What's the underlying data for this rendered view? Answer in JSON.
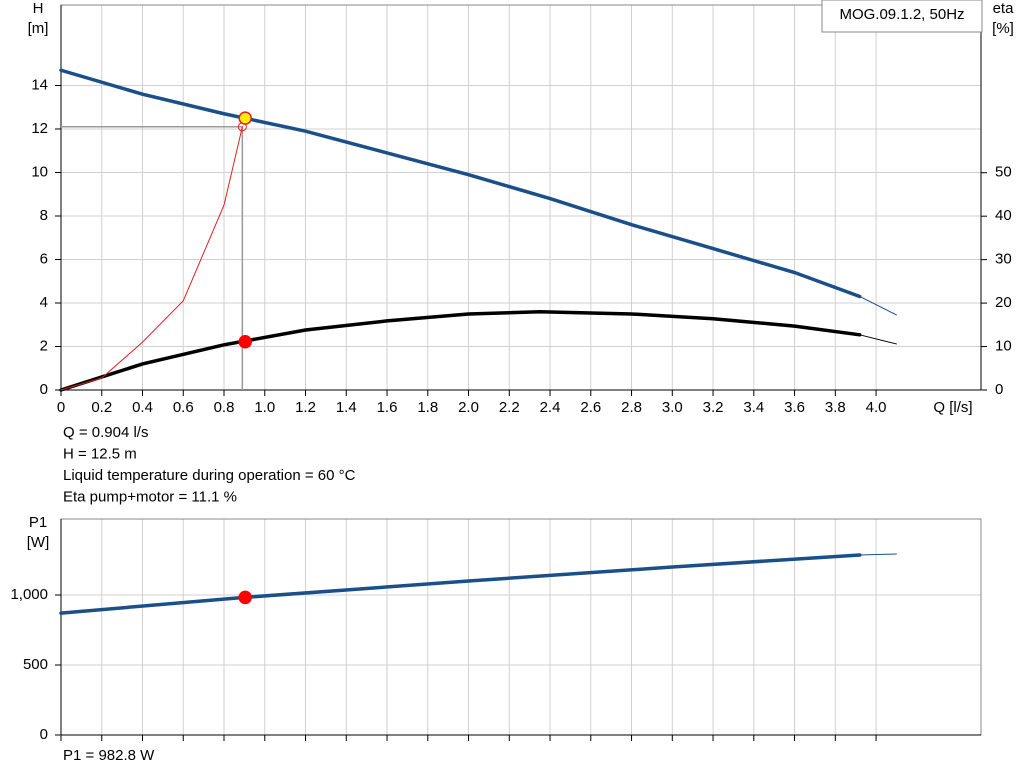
{
  "chart_data": [
    {
      "type": "line",
      "title": "MOG.09.1.2, 50Hz",
      "ylabel": "H",
      "ylabel_unit": "[m]",
      "y2label": "eta",
      "y2label_unit": "[%]",
      "xlabel": "Q [l/s]",
      "xlim": [
        0,
        4.515
      ],
      "ylim": [
        0,
        17.7
      ],
      "y2lim": [
        0,
        88.6
      ],
      "xticks": [
        0,
        0.2,
        0.4,
        0.6,
        0.8,
        {
          "value": 1,
          "label": "1.0"
        },
        1.2,
        1.4,
        1.6,
        1.8,
        {
          "value": 2,
          "label": "2.0"
        },
        2.2,
        2.4,
        2.6,
        2.8,
        {
          "value": 3,
          "label": "3.0"
        },
        3.2,
        3.4,
        3.6,
        3.8,
        {
          "value": 4,
          "label": "4.0"
        }
      ],
      "yticks": [
        0,
        2,
        4,
        6,
        8,
        10,
        12,
        14
      ],
      "y2ticks": [
        0,
        10,
        20,
        30,
        40,
        50
      ],
      "grid": true,
      "series": [
        {
          "color": "#1b4f8a",
          "width": 3.5,
          "x": [
            0,
            0.4,
            0.8,
            1.2,
            1.6,
            2.0,
            2.4,
            2.8,
            3.2,
            3.6,
            3.92
          ],
          "values": [
            14.7,
            13.6,
            12.7,
            11.9,
            10.9,
            9.9,
            8.8,
            7.6,
            6.5,
            5.4,
            4.3
          ]
        },
        {
          "color": "#1b4f8a",
          "width": 1,
          "x": [
            3.92,
            4.1
          ],
          "values": [
            4.3,
            3.45
          ]
        },
        {
          "color": "#000000",
          "width": 3.5,
          "axis": "y2",
          "x": [
            0,
            0.4,
            0.8,
            1.2,
            1.6,
            2.0,
            2.35,
            2.8,
            3.2,
            3.6,
            3.92
          ],
          "values": [
            0,
            6,
            10.4,
            13.8,
            15.9,
            17.5,
            18,
            17.5,
            16.4,
            14.7,
            12.7
          ]
        },
        {
          "color": "#000000",
          "width": 1,
          "axis": "y2",
          "x": [
            3.92,
            4.1
          ],
          "values": [
            12.7,
            10.6
          ]
        },
        {
          "color": "#e02020",
          "width": 1,
          "x": [
            0,
            0.2,
            0.4,
            0.6,
            0.8,
            0.89
          ],
          "values": [
            0,
            0.55,
            2.2,
            4.1,
            8.5,
            12.1
          ]
        }
      ],
      "guide": {
        "x": 0.89,
        "y": 12.1
      },
      "points": [
        {
          "x": 0.904,
          "y": 12.5,
          "color": "#ffee00",
          "edge": "#e02020"
        },
        {
          "x": 0.904,
          "y": 11.1,
          "axis": "y2",
          "color": "#ff0000",
          "edge": "#ff0000"
        }
      ],
      "annotations": [
        "Q = 0.904 l/s",
        "H = 12.5 m",
        "Liquid temperature during operation = 60 °C",
        "Eta pump+motor = 11.1 %"
      ]
    },
    {
      "type": "line",
      "ylabel": "P1",
      "ylabel_unit": "[W]",
      "xlim": [
        0,
        4.515
      ],
      "ylim": [
        0,
        1543
      ],
      "xticks": [
        0,
        0.2,
        0.4,
        0.6,
        0.8,
        1,
        1.2,
        1.4,
        1.6,
        1.8,
        2,
        2.2,
        2.4,
        2.6,
        2.8,
        3,
        3.2,
        3.4,
        3.6,
        3.8,
        4
      ],
      "yticks": [
        0,
        500,
        {
          "value": 1000,
          "label": "1,000"
        }
      ],
      "grid": true,
      "series": [
        {
          "color": "#1b4f8a",
          "width": 3.5,
          "x": [
            0,
            0.9,
            2.0,
            3.0,
            3.92
          ],
          "values": [
            871,
            983,
            1100,
            1200,
            1286
          ]
        },
        {
          "color": "#1b4f8a",
          "width": 1,
          "x": [
            3.92,
            4.1
          ],
          "values": [
            1286,
            1293
          ]
        }
      ],
      "points": [
        {
          "x": 0.904,
          "y": 982.8,
          "color": "#ff0000",
          "edge": "#ff0000"
        }
      ],
      "annotations": [
        "P1 = 982.8 W"
      ]
    }
  ]
}
